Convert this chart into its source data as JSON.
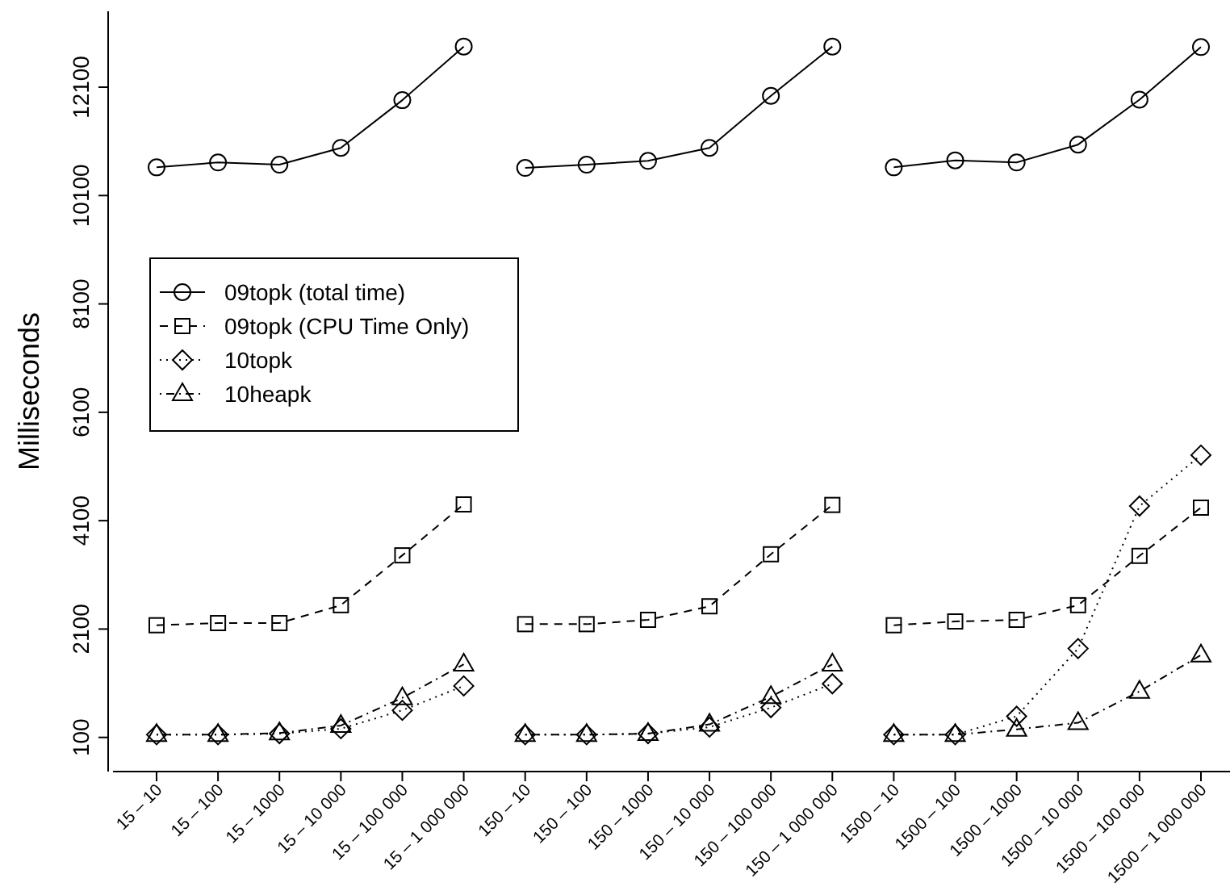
{
  "chart_data": {
    "type": "line",
    "ylabel": "Milliseconds",
    "categories": [
      "15 – 10",
      "15 – 100",
      "15 – 1000",
      "15 – 10 000",
      "15 – 100 000",
      "15 – 1 000 000",
      "150 – 10",
      "150 – 100",
      "150 – 1000",
      "150 – 10 000",
      "150 – 100 000",
      "150 – 1 000 000",
      "1500 – 10",
      "1500 – 100",
      "1500 – 1000",
      "1500 – 10 000",
      "1500 – 100 000",
      "1500 – 1 000 000"
    ],
    "ylim": [
      -530,
      13500
    ],
    "yticks": [
      100,
      2100,
      4100,
      6100,
      8100,
      10100,
      12100
    ],
    "legend": "left",
    "grid": false,
    "series": [
      {
        "name": "09topk (total time)",
        "color": "#000000",
        "marker": "circle",
        "line_style": "solid",
        "values": [
          10620,
          10710,
          10670,
          10980,
          11860,
          12850,
          null,
          null,
          null,
          null,
          null,
          null,
          null,
          null,
          null,
          null,
          null,
          null
        ]
      },
      {
        "name": "09topk (CPU Time Only)",
        "color": "#000000",
        "marker": "square",
        "line_style": "dashed",
        "values": [
          2170,
          2210,
          2210,
          2540,
          3460,
          4400,
          null,
          null,
          null,
          null,
          null,
          null,
          null,
          null,
          null,
          null,
          null,
          null
        ]
      },
      {
        "name": "10topk",
        "color": "#000000",
        "marker": "diamond",
        "line_style": "dotted",
        "values": [
          150,
          150,
          170,
          260,
          600,
          1050,
          null,
          null,
          null,
          null,
          null,
          null,
          null,
          null,
          null,
          null,
          null,
          null
        ]
      },
      {
        "name": "10heapk",
        "color": "#000000",
        "marker": "triangle",
        "line_style": "dashdot",
        "values": [
          150,
          150,
          180,
          320,
          830,
          1450,
          null,
          null,
          null,
          null,
          null,
          null,
          null,
          null,
          null,
          null,
          null,
          null
        ]
      },
      {
        "color": "#000000",
        "marker": "circle",
        "line_style": "solid",
        "values": [
          null,
          null,
          null,
          null,
          null,
          null,
          10610,
          10670,
          10740,
          10980,
          11940,
          12850,
          null,
          null,
          null,
          null,
          null,
          null
        ]
      },
      {
        "color": "#000000",
        "marker": "square",
        "line_style": "dashed",
        "values": [
          null,
          null,
          null,
          null,
          null,
          null,
          2190,
          2190,
          2270,
          2520,
          3480,
          4390,
          null,
          null,
          null,
          null,
          null,
          null
        ]
      },
      {
        "color": "#000000",
        "marker": "diamond",
        "line_style": "dotted",
        "values": [
          null,
          null,
          null,
          null,
          null,
          null,
          150,
          150,
          170,
          290,
          650,
          1090,
          null,
          null,
          null,
          null,
          null,
          null
        ]
      },
      {
        "color": "#000000",
        "marker": "triangle",
        "line_style": "dashdot",
        "values": [
          null,
          null,
          null,
          null,
          null,
          null,
          150,
          150,
          170,
          340,
          850,
          1450,
          null,
          null,
          null,
          null,
          null,
          null
        ]
      },
      {
        "color": "#000000",
        "marker": "circle",
        "line_style": "solid",
        "values": [
          null,
          null,
          null,
          null,
          null,
          null,
          null,
          null,
          null,
          null,
          null,
          null,
          10620,
          10750,
          10710,
          11040,
          11870,
          12840
        ]
      },
      {
        "color": "#000000",
        "marker": "square",
        "line_style": "dashed",
        "values": [
          null,
          null,
          null,
          null,
          null,
          null,
          null,
          null,
          null,
          null,
          null,
          null,
          2170,
          2240,
          2270,
          2540,
          3450,
          4340
        ]
      },
      {
        "color": "#000000",
        "marker": "diamond",
        "line_style": "dotted",
        "values": [
          null,
          null,
          null,
          null,
          null,
          null,
          null,
          null,
          null,
          null,
          null,
          null,
          150,
          150,
          490,
          1740,
          4370,
          5310
        ]
      },
      {
        "color": "#000000",
        "marker": "triangle",
        "line_style": "dashdot",
        "values": [
          null,
          null,
          null,
          null,
          null,
          null,
          null,
          null,
          null,
          null,
          null,
          null,
          150,
          150,
          250,
          370,
          950,
          1620
        ]
      }
    ]
  }
}
